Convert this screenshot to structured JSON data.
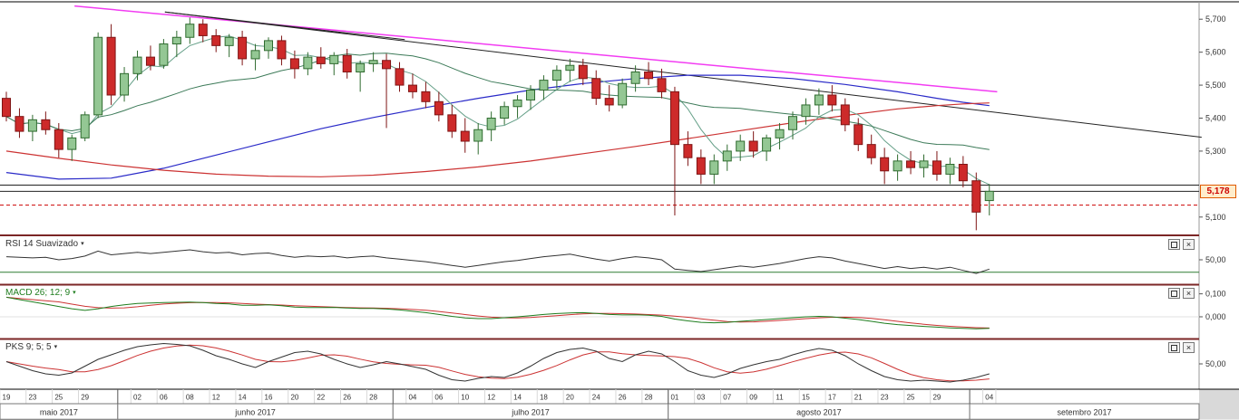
{
  "price_axis": {
    "last_price_label": "5,178"
  },
  "indicator_panels": {
    "rsi": {
      "title": "RSI 14 Suavizado"
    },
    "macd": {
      "title": "MACD 26; 12; 9"
    },
    "pks": {
      "title": "PKS 9; 5; 5"
    }
  },
  "icons": {
    "caret": "▾",
    "close": "×"
  },
  "colors": {
    "up_fill": "#94c794",
    "up_stroke": "#2f6b2f",
    "down_fill": "#cd2a2a",
    "down_stroke": "#7e1414",
    "ma_fast": "#66a089",
    "ma_slow": "#3c7a58",
    "ma_blue": "#2a2ac8",
    "ma_long_red": "#cc3333",
    "trendline_magenta": "#f23cf2",
    "trendline_black": "#222222",
    "separator": "#7b2626",
    "rsi_line": "#333333",
    "rsi_level": "#2e7d32",
    "macd_line": "#1e7d1e",
    "macd_signal": "#cc3333",
    "pks_line": "#333333",
    "pks_signal": "#cc3333",
    "price_tag_border": "#e05a00",
    "price_tag_bg": "#ffedcc",
    "price_tag_text": "#cc0000"
  },
  "chart_data": {
    "type": "candlestick",
    "title": "",
    "dates": [
      "19/05",
      "22/05",
      "23/05",
      "24/05",
      "25/05",
      "26/05",
      "29/05",
      "30/05",
      "31/05",
      "01/06",
      "02/06",
      "05/06",
      "06/06",
      "07/06",
      "08/06",
      "09/06",
      "12/06",
      "13/06",
      "14/06",
      "15/06",
      "16/06",
      "19/06",
      "20/06",
      "21/06",
      "22/06",
      "23/06",
      "26/06",
      "27/06",
      "28/06",
      "29/06",
      "03/07",
      "04/07",
      "05/07",
      "06/07",
      "07/07",
      "10/07",
      "11/07",
      "12/07",
      "13/07",
      "14/07",
      "17/07",
      "18/07",
      "19/07",
      "20/07",
      "21/07",
      "24/07",
      "25/07",
      "26/07",
      "27/07",
      "28/07",
      "31/07",
      "01/08",
      "02/08",
      "03/08",
      "04/08",
      "07/08",
      "08/08",
      "09/08",
      "10/08",
      "11/08",
      "14/08",
      "15/08",
      "16/08",
      "17/08",
      "18/08",
      "21/08",
      "22/08",
      "23/08",
      "24/08",
      "25/08",
      "28/08",
      "29/08",
      "30/08",
      "31/08",
      "01/09",
      "04/09"
    ],
    "ohlc": [
      [
        5460,
        5480,
        5390,
        5405
      ],
      [
        5405,
        5430,
        5340,
        5360
      ],
      [
        5360,
        5410,
        5330,
        5395
      ],
      [
        5395,
        5420,
        5350,
        5365
      ],
      [
        5365,
        5385,
        5280,
        5305
      ],
      [
        5305,
        5350,
        5270,
        5340
      ],
      [
        5340,
        5420,
        5330,
        5410
      ],
      [
        5410,
        5660,
        5400,
        5645
      ],
      [
        5645,
        5685,
        5440,
        5470
      ],
      [
        5470,
        5555,
        5450,
        5535
      ],
      [
        5535,
        5605,
        5515,
        5585
      ],
      [
        5585,
        5620,
        5545,
        5560
      ],
      [
        5560,
        5640,
        5550,
        5625
      ],
      [
        5625,
        5665,
        5585,
        5645
      ],
      [
        5645,
        5705,
        5625,
        5685
      ],
      [
        5685,
        5700,
        5630,
        5650
      ],
      [
        5650,
        5670,
        5600,
        5620
      ],
      [
        5620,
        5655,
        5585,
        5645
      ],
      [
        5645,
        5665,
        5560,
        5580
      ],
      [
        5580,
        5625,
        5545,
        5605
      ],
      [
        5605,
        5645,
        5580,
        5635
      ],
      [
        5635,
        5650,
        5560,
        5580
      ],
      [
        5580,
        5605,
        5520,
        5550
      ],
      [
        5550,
        5600,
        5530,
        5585
      ],
      [
        5585,
        5615,
        5550,
        5565
      ],
      [
        5565,
        5600,
        5530,
        5590
      ],
      [
        5590,
        5610,
        5520,
        5540
      ],
      [
        5540,
        5575,
        5480,
        5565
      ],
      [
        5565,
        5600,
        5540,
        5575
      ],
      [
        5575,
        5595,
        5370,
        5550
      ],
      [
        5550,
        5570,
        5480,
        5500
      ],
      [
        5500,
        5535,
        5460,
        5480
      ],
      [
        5480,
        5510,
        5430,
        5450
      ],
      [
        5450,
        5480,
        5390,
        5410
      ],
      [
        5410,
        5440,
        5340,
        5360
      ],
      [
        5360,
        5400,
        5295,
        5330
      ],
      [
        5330,
        5385,
        5290,
        5365
      ],
      [
        5365,
        5420,
        5330,
        5400
      ],
      [
        5400,
        5450,
        5380,
        5435
      ],
      [
        5435,
        5470,
        5400,
        5455
      ],
      [
        5455,
        5500,
        5425,
        5485
      ],
      [
        5485,
        5530,
        5455,
        5515
      ],
      [
        5515,
        5560,
        5490,
        5545
      ],
      [
        5545,
        5580,
        5510,
        5560
      ],
      [
        5560,
        5580,
        5500,
        5520
      ],
      [
        5520,
        5545,
        5440,
        5460
      ],
      [
        5460,
        5500,
        5420,
        5440
      ],
      [
        5440,
        5520,
        5430,
        5505
      ],
      [
        5505,
        5560,
        5480,
        5540
      ],
      [
        5540,
        5570,
        5500,
        5520
      ],
      [
        5520,
        5550,
        5460,
        5480
      ],
      [
        5480,
        5495,
        5105,
        5320
      ],
      [
        5320,
        5360,
        5255,
        5280
      ],
      [
        5280,
        5305,
        5200,
        5230
      ],
      [
        5230,
        5290,
        5200,
        5270
      ],
      [
        5270,
        5320,
        5240,
        5300
      ],
      [
        5300,
        5350,
        5270,
        5330
      ],
      [
        5330,
        5360,
        5280,
        5300
      ],
      [
        5300,
        5350,
        5270,
        5340
      ],
      [
        5340,
        5385,
        5305,
        5365
      ],
      [
        5365,
        5420,
        5335,
        5405
      ],
      [
        5405,
        5460,
        5380,
        5440
      ],
      [
        5440,
        5490,
        5410,
        5470
      ],
      [
        5470,
        5500,
        5420,
        5440
      ],
      [
        5440,
        5460,
        5360,
        5380
      ],
      [
        5380,
        5400,
        5300,
        5320
      ],
      [
        5320,
        5350,
        5260,
        5280
      ],
      [
        5280,
        5310,
        5200,
        5240
      ],
      [
        5240,
        5290,
        5210,
        5270
      ],
      [
        5270,
        5300,
        5230,
        5250
      ],
      [
        5250,
        5290,
        5220,
        5270
      ],
      [
        5270,
        5300,
        5210,
        5230
      ],
      [
        5230,
        5280,
        5200,
        5260
      ],
      [
        5260,
        5285,
        5190,
        5210
      ],
      [
        5210,
        5235,
        5060,
        5115
      ],
      [
        5150,
        5200,
        5105,
        5178
      ]
    ],
    "x_ticks": [
      {
        "i": 0,
        "label": "19"
      },
      {
        "i": 2,
        "label": "23"
      },
      {
        "i": 4,
        "label": "25"
      },
      {
        "i": 6,
        "label": "29"
      },
      {
        "i": 10,
        "label": "02"
      },
      {
        "i": 12,
        "label": "06"
      },
      {
        "i": 14,
        "label": "08"
      },
      {
        "i": 16,
        "label": "12"
      },
      {
        "i": 18,
        "label": "14"
      },
      {
        "i": 20,
        "label": "16"
      },
      {
        "i": 22,
        "label": "20"
      },
      {
        "i": 24,
        "label": "22"
      },
      {
        "i": 26,
        "label": "26"
      },
      {
        "i": 28,
        "label": "28"
      },
      {
        "i": 31,
        "label": "04"
      },
      {
        "i": 33,
        "label": "06"
      },
      {
        "i": 35,
        "label": "10"
      },
      {
        "i": 37,
        "label": "12"
      },
      {
        "i": 39,
        "label": "14"
      },
      {
        "i": 41,
        "label": "18"
      },
      {
        "i": 43,
        "label": "20"
      },
      {
        "i": 45,
        "label": "24"
      },
      {
        "i": 47,
        "label": "26"
      },
      {
        "i": 49,
        "label": "28"
      },
      {
        "i": 51,
        "label": "01"
      },
      {
        "i": 53,
        "label": "03"
      },
      {
        "i": 55,
        "label": "07"
      },
      {
        "i": 57,
        "label": "09"
      },
      {
        "i": 59,
        "label": "11"
      },
      {
        "i": 61,
        "label": "15"
      },
      {
        "i": 63,
        "label": "17"
      },
      {
        "i": 65,
        "label": "21"
      },
      {
        "i": 67,
        "label": "23"
      },
      {
        "i": 69,
        "label": "25"
      },
      {
        "i": 71,
        "label": "29"
      },
      {
        "i": 75,
        "label": "04"
      }
    ],
    "months": [
      {
        "label": "maio 2017",
        "from": 0,
        "to": 8
      },
      {
        "label": "junho 2017",
        "from": 9,
        "to": 29
      },
      {
        "label": "julho 2017",
        "from": 30,
        "to": 50
      },
      {
        "label": "agosto 2017",
        "from": 51,
        "to": 73
      },
      {
        "label": "setembro 2017",
        "from": 74,
        "to": 75
      }
    ],
    "y_axis": {
      "min": 5050,
      "max": 5750,
      "tick_labels": [
        {
          "label": "5,700",
          "value": 5700
        },
        {
          "label": "5,600",
          "value": 5600
        },
        {
          "label": "5,500",
          "value": 5500
        },
        {
          "label": "5,400",
          "value": 5400
        },
        {
          "label": "5,300",
          "value": 5300
        },
        {
          "label": "5,100",
          "value": 5100
        }
      ]
    },
    "last_price": {
      "label": "5,178",
      "value": 5178
    },
    "overlays": {
      "ma_blue": {
        "color": "#2a2ac8",
        "points": [
          [
            0,
            5235
          ],
          [
            4,
            5215
          ],
          [
            8,
            5218
          ],
          [
            12,
            5248
          ],
          [
            16,
            5288
          ],
          [
            20,
            5328
          ],
          [
            24,
            5368
          ],
          [
            28,
            5402
          ],
          [
            32,
            5432
          ],
          [
            36,
            5460
          ],
          [
            40,
            5485
          ],
          [
            44,
            5505
          ],
          [
            48,
            5520
          ],
          [
            52,
            5530
          ],
          [
            56,
            5530
          ],
          [
            60,
            5520
          ],
          [
            64,
            5502
          ],
          [
            68,
            5480
          ],
          [
            71,
            5460
          ],
          [
            73,
            5448
          ],
          [
            75,
            5438
          ]
        ]
      },
      "ma_red": {
        "color": "#cc3333",
        "points": [
          [
            0,
            5300
          ],
          [
            4,
            5278
          ],
          [
            8,
            5258
          ],
          [
            12,
            5242
          ],
          [
            16,
            5230
          ],
          [
            20,
            5224
          ],
          [
            24,
            5222
          ],
          [
            28,
            5227
          ],
          [
            32,
            5238
          ],
          [
            36,
            5252
          ],
          [
            40,
            5270
          ],
          [
            44,
            5292
          ],
          [
            48,
            5314
          ],
          [
            52,
            5338
          ],
          [
            56,
            5362
          ],
          [
            60,
            5386
          ],
          [
            64,
            5408
          ],
          [
            68,
            5428
          ],
          [
            71,
            5438
          ],
          [
            73,
            5443
          ],
          [
            75,
            5446
          ]
        ]
      },
      "trendlines": [
        {
          "color": "#f23cf2",
          "width": 1.5,
          "from": [
            5.2,
            5740
          ],
          "to": [
            75.6,
            5480
          ]
        },
        {
          "color": "#222222",
          "width": 1,
          "from": [
            12.1,
            5722
          ],
          "to": [
            91.2,
            5342
          ]
        },
        {
          "color": "#222222",
          "width": 1,
          "from": [
            12.1,
            5722
          ],
          "to": [
            30.4,
            5638
          ]
        }
      ],
      "hlines": [
        {
          "value": 5197,
          "color": "#222222",
          "dash": ""
        },
        {
          "value": 5178,
          "color": "#222222",
          "dash": ""
        },
        {
          "value": 5136,
          "color": "#cc0000",
          "dash": "4,3"
        }
      ]
    },
    "indicators": {
      "rsi": {
        "range": [
          15,
          85
        ],
        "level_line": {
          "value": 30
        },
        "axis_labels": [
          {
            "label": "50,00",
            "value": 50
          }
        ],
        "series": [
          55,
          54,
          53,
          54,
          50,
          52,
          56,
          64,
          58,
          60,
          62,
          60,
          62,
          64,
          66,
          63,
          61,
          62,
          58,
          60,
          61,
          57,
          54,
          56,
          55,
          56,
          53,
          55,
          56,
          53,
          51,
          49,
          47,
          44,
          41,
          38,
          41,
          44,
          47,
          49,
          52,
          55,
          57,
          59,
          55,
          51,
          48,
          52,
          55,
          53,
          50,
          35,
          33,
          31,
          34,
          37,
          40,
          38,
          41,
          44,
          48,
          52,
          55,
          53,
          48,
          44,
          40,
          36,
          39,
          36,
          38,
          35,
          38,
          33,
          28,
          35
        ]
      },
      "macd": {
        "range": [
          -0.075,
          0.13
        ],
        "axis_labels": [
          {
            "label": "0,100",
            "value": 0.1
          },
          {
            "label": "0,000",
            "value": 0.0
          }
        ],
        "series": [
          0.085,
          0.075,
          0.065,
          0.055,
          0.045,
          0.035,
          0.028,
          0.035,
          0.045,
          0.052,
          0.058,
          0.06,
          0.062,
          0.063,
          0.064,
          0.062,
          0.058,
          0.056,
          0.05,
          0.05,
          0.052,
          0.048,
          0.042,
          0.04,
          0.04,
          0.041,
          0.038,
          0.036,
          0.036,
          0.034,
          0.03,
          0.024,
          0.018,
          0.01,
          0.002,
          -0.005,
          -0.008,
          -0.008,
          -0.004,
          0.0,
          0.005,
          0.01,
          0.014,
          0.017,
          0.018,
          0.015,
          0.01,
          0.008,
          0.009,
          0.007,
          0.002,
          -0.01,
          -0.018,
          -0.024,
          -0.026,
          -0.024,
          -0.02,
          -0.016,
          -0.012,
          -0.008,
          -0.004,
          0.0,
          0.002,
          0.0,
          -0.006,
          -0.012,
          -0.02,
          -0.028,
          -0.034,
          -0.038,
          -0.042,
          -0.045,
          -0.048,
          -0.05,
          -0.052,
          -0.05
        ]
      },
      "pks": {
        "range": [
          0,
          100
        ],
        "axis_labels": [
          {
            "label": "50,00",
            "value": 50
          }
        ],
        "series": [
          55,
          45,
          35,
          28,
          25,
          30,
          45,
          60,
          70,
          80,
          88,
          92,
          95,
          93,
          90,
          80,
          68,
          60,
          50,
          42,
          55,
          65,
          75,
          78,
          72,
          60,
          50,
          42,
          48,
          55,
          50,
          44,
          38,
          25,
          15,
          12,
          18,
          22,
          20,
          30,
          45,
          62,
          75,
          82,
          85,
          78,
          62,
          55,
          70,
          78,
          72,
          55,
          35,
          25,
          20,
          28,
          40,
          48,
          55,
          60,
          70,
          78,
          84,
          80,
          68,
          50,
          35,
          22,
          15,
          12,
          14,
          12,
          10,
          14,
          20,
          28
        ]
      }
    }
  }
}
